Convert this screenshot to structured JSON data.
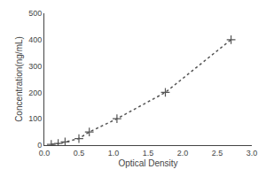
{
  "chart_data": {
    "type": "line",
    "xlabel": "Optical Density",
    "ylabel": "Concentration(ng/mL)",
    "x": [
      0.1,
      0.2,
      0.3,
      0.5,
      0.65,
      1.05,
      1.75,
      2.7
    ],
    "series": [
      {
        "values": [
          3,
          6,
          12,
          25,
          50,
          100,
          200,
          400
        ],
        "color": "#555555",
        "line_style": "dotted",
        "marker": "cross"
      }
    ],
    "xlim": [
      0,
      3
    ],
    "xticks": [
      {
        "value": 0,
        "label": "0.0"
      },
      0.5,
      {
        "value": 1,
        "label": "1.0"
      },
      1.5,
      {
        "value": 2,
        "label": "2.0"
      },
      2.5,
      {
        "value": 3,
        "label": "3.0"
      }
    ],
    "ylim": [
      0,
      500
    ],
    "yticks": [
      0,
      100,
      200,
      300,
      400,
      500
    ],
    "grid": false
  }
}
